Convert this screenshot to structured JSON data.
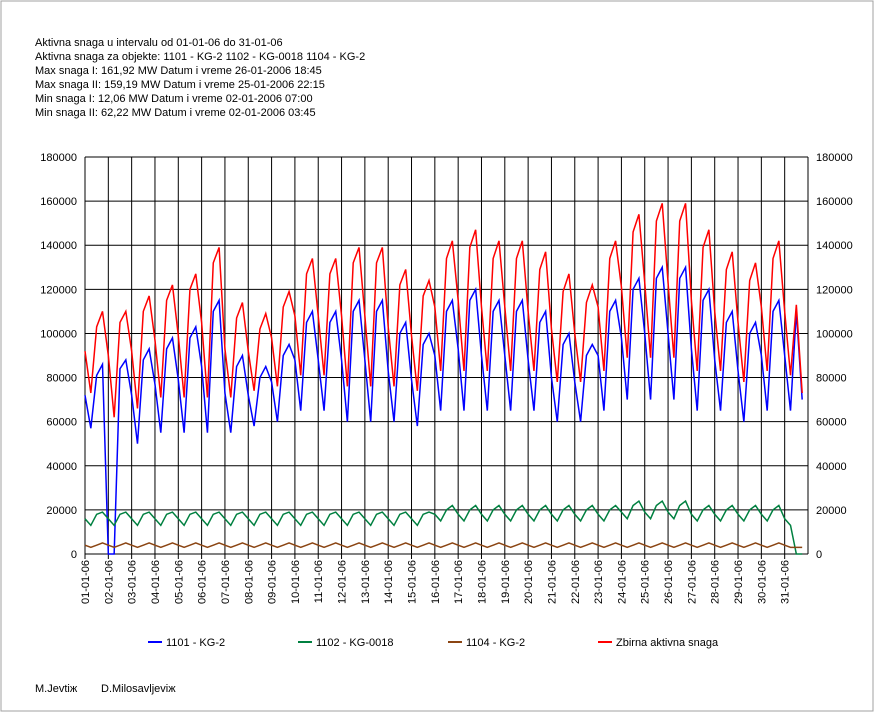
{
  "header": [
    "Aktivna snaga u intervalu od 01-01-06 do 31-01-06",
    "Aktivna snaga za objekte: 1101 - KG-2   1102 - KG-0018   1104 - KG-2",
    "Max snaga I:     161,92 MW Datum i vreme 26-01-2006 18:45",
    "Max snaga II:    159,19 MW Datum i vreme 25-01-2006 22:15",
    "Min snaga I:     12,06 MW Datum i vreme 02-01-2006 07:00",
    "Min snaga II:    62,22 MW Datum i vreme 02-01-2006 03:45"
  ],
  "footer": [
    "M.Jevtiж",
    "D.Milosavljeviж"
  ],
  "chart_data": {
    "type": "line",
    "categories": [
      "01-01-06",
      null,
      null,
      null,
      "02-01-06",
      null,
      null,
      null,
      "03-01-06",
      null,
      null,
      null,
      "04-01-06",
      null,
      null,
      null,
      "05-01-06",
      null,
      null,
      null,
      "06-01-06",
      null,
      null,
      null,
      "07-01-06",
      null,
      null,
      null,
      "08-01-06",
      null,
      null,
      null,
      "09-01-06",
      null,
      null,
      null,
      "10-01-06",
      null,
      null,
      null,
      "11-01-06",
      null,
      null,
      null,
      "12-01-06",
      null,
      null,
      null,
      "13-01-06",
      null,
      null,
      null,
      "14-01-06",
      null,
      null,
      null,
      "15-01-06",
      null,
      null,
      null,
      "16-01-06",
      null,
      null,
      null,
      "17-01-06",
      null,
      null,
      null,
      "18-01-06",
      null,
      null,
      null,
      "19-01-06",
      null,
      null,
      null,
      "20-01-06",
      null,
      null,
      null,
      "21-01-06",
      null,
      null,
      null,
      "22-01-06",
      null,
      null,
      null,
      "23-01-06",
      null,
      null,
      null,
      "24-01-06",
      null,
      null,
      null,
      "25-01-06",
      null,
      null,
      null,
      "26-01-06",
      null,
      null,
      null,
      "27-01-06",
      null,
      null,
      null,
      "28-01-06",
      null,
      null,
      null,
      "29-01-06",
      null,
      null,
      null,
      "30-01-06",
      null,
      null,
      null,
      "31-01-06",
      null,
      null,
      null
    ],
    "ylim": [
      0,
      180000
    ],
    "yticks": [
      0,
      20000,
      40000,
      60000,
      80000,
      100000,
      120000,
      140000,
      160000,
      180000
    ],
    "grid": true,
    "series": [
      {
        "name": "1101 - KG-2",
        "color": "#0000ff",
        "values": [
          72000,
          57000,
          81000,
          86000,
          0,
          0,
          84000,
          88000,
          72000,
          50000,
          88000,
          93000,
          77000,
          55000,
          93000,
          98000,
          79000,
          55000,
          98000,
          103000,
          85000,
          55000,
          110000,
          115000,
          73000,
          55000,
          85000,
          90000,
          72000,
          58000,
          80000,
          85000,
          78000,
          60000,
          90000,
          95000,
          88000,
          65000,
          105000,
          110000,
          88000,
          65000,
          105000,
          110000,
          88000,
          60000,
          110000,
          115000,
          88000,
          60000,
          110000,
          115000,
          83000,
          60000,
          100000,
          105000,
          79000,
          58000,
          95000,
          100000,
          90000,
          65000,
          110000,
          115000,
          93000,
          65000,
          115000,
          120000,
          90000,
          65000,
          110000,
          115000,
          90000,
          65000,
          110000,
          115000,
          88000,
          65000,
          105000,
          110000,
          80000,
          60000,
          95000,
          100000,
          78000,
          60000,
          90000,
          95000,
          90000,
          65000,
          110000,
          115000,
          98000,
          70000,
          120000,
          125000,
          100000,
          70000,
          125000,
          130000,
          100000,
          70000,
          125000,
          130000,
          93000,
          65000,
          115000,
          120000,
          88000,
          65000,
          105000,
          110000,
          83000,
          60000,
          100000,
          105000,
          90000,
          65000,
          110000,
          115000,
          90000,
          65000,
          110000,
          70000
        ]
      },
      {
        "name": "1102 - KG-0018",
        "color": "#008040",
        "values": [
          16000,
          13000,
          18000,
          19000,
          16000,
          13000,
          18000,
          19000,
          16000,
          13000,
          18000,
          19000,
          16000,
          13000,
          18000,
          19000,
          16000,
          13000,
          18000,
          19000,
          16000,
          13000,
          18000,
          19000,
          16000,
          13000,
          18000,
          19000,
          16000,
          13000,
          18000,
          19000,
          16000,
          13000,
          18000,
          19000,
          16000,
          13000,
          18000,
          19000,
          16000,
          13000,
          18000,
          19000,
          16000,
          13000,
          18000,
          19000,
          16000,
          13000,
          18000,
          19000,
          16000,
          13000,
          18000,
          19000,
          16000,
          13000,
          18000,
          19000,
          18000,
          15000,
          20000,
          22000,
          18000,
          15000,
          20000,
          22000,
          18000,
          15000,
          20000,
          22000,
          18000,
          15000,
          20000,
          22000,
          18000,
          15000,
          20000,
          22000,
          18000,
          15000,
          20000,
          22000,
          18000,
          15000,
          20000,
          22000,
          18000,
          15000,
          20000,
          22000,
          19000,
          16000,
          22000,
          24000,
          19000,
          16000,
          22000,
          24000,
          19000,
          16000,
          22000,
          24000,
          18000,
          15000,
          20000,
          22000,
          18000,
          15000,
          20000,
          22000,
          18000,
          15000,
          20000,
          22000,
          18000,
          15000,
          20000,
          22000,
          16000,
          13000,
          0,
          0
        ]
      },
      {
        "name": "1104 - KG-2",
        "color": "#8b4513",
        "values": [
          4000,
          3000,
          4000,
          5000,
          4000,
          3000,
          4000,
          5000,
          4000,
          3000,
          4000,
          5000,
          4000,
          3000,
          4000,
          5000,
          4000,
          3000,
          4000,
          5000,
          4000,
          3000,
          4000,
          5000,
          4000,
          3000,
          4000,
          5000,
          4000,
          3000,
          4000,
          5000,
          4000,
          3000,
          4000,
          5000,
          4000,
          3000,
          4000,
          5000,
          4000,
          3000,
          4000,
          5000,
          4000,
          3000,
          4000,
          5000,
          4000,
          3000,
          4000,
          5000,
          4000,
          3000,
          4000,
          5000,
          4000,
          3000,
          4000,
          5000,
          4000,
          3000,
          4000,
          5000,
          4000,
          3000,
          4000,
          5000,
          4000,
          3000,
          4000,
          5000,
          4000,
          3000,
          4000,
          5000,
          4000,
          3000,
          4000,
          5000,
          4000,
          3000,
          4000,
          5000,
          4000,
          3000,
          4000,
          5000,
          4000,
          3000,
          4000,
          5000,
          4000,
          3000,
          4000,
          5000,
          4000,
          3000,
          4000,
          5000,
          4000,
          3000,
          4000,
          5000,
          4000,
          3000,
          4000,
          5000,
          4000,
          3000,
          4000,
          5000,
          4000,
          3000,
          4000,
          5000,
          4000,
          3000,
          4000,
          5000,
          4000,
          3000,
          3000,
          3000
        ]
      },
      {
        "name": "Zbirna aktivna snaga",
        "color": "#ff0000",
        "values": [
          92000,
          73000,
          103000,
          110000,
          90000,
          62000,
          105000,
          110000,
          92000,
          66000,
          110000,
          117000,
          97000,
          71000,
          115000,
          122000,
          99000,
          71000,
          120000,
          127000,
          105000,
          71000,
          132000,
          139000,
          93000,
          71000,
          107000,
          114000,
          92000,
          74000,
          102000,
          109000,
          98000,
          76000,
          112000,
          119000,
          108000,
          81000,
          127000,
          134000,
          108000,
          81000,
          127000,
          134000,
          108000,
          76000,
          132000,
          139000,
          108000,
          76000,
          132000,
          139000,
          103000,
          76000,
          122000,
          129000,
          99000,
          74000,
          117000,
          124000,
          112000,
          83000,
          134000,
          142000,
          115000,
          83000,
          139000,
          147000,
          112000,
          83000,
          134000,
          142000,
          112000,
          83000,
          134000,
          142000,
          110000,
          83000,
          129000,
          137000,
          102000,
          78000,
          119000,
          127000,
          100000,
          78000,
          114000,
          122000,
          112000,
          83000,
          134000,
          142000,
          121000,
          89000,
          146000,
          154000,
          123000,
          89000,
          151000,
          159000,
          123000,
          89000,
          151000,
          159000,
          115000,
          83000,
          139000,
          147000,
          110000,
          83000,
          129000,
          137000,
          105000,
          78000,
          124000,
          132000,
          112000,
          83000,
          134000,
          142000,
          110000,
          81000,
          113000,
          73000
        ]
      }
    ]
  }
}
